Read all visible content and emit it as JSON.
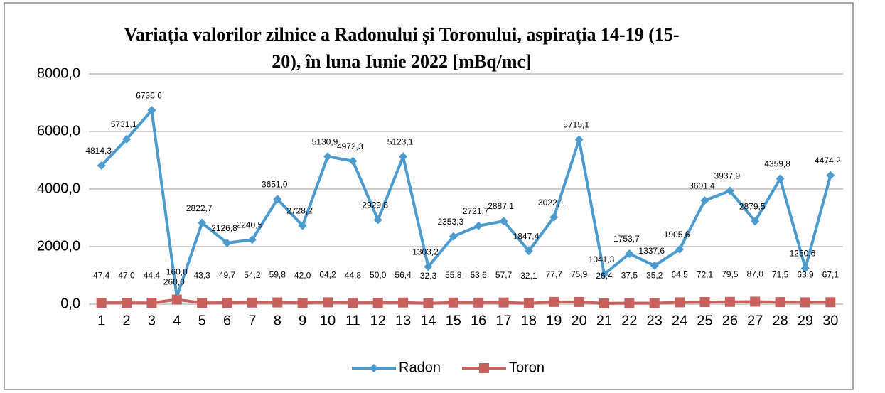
{
  "chart_data": {
    "type": "line",
    "title": "Variația valorilor zilnice a Radonului și Toronului, aspirația 14-19 (15-20),  în luna Iunie 2022 [mBq/mc]",
    "categories": [
      "1",
      "2",
      "3",
      "4",
      "5",
      "6",
      "7",
      "8",
      "9",
      "10",
      "11",
      "12",
      "13",
      "14",
      "15",
      "16",
      "17",
      "18",
      "19",
      "20",
      "21",
      "22",
      "23",
      "24",
      "25",
      "26",
      "27",
      "28",
      "29",
      "30"
    ],
    "series": [
      {
        "name": "Radon",
        "color": "#4b9bcf",
        "marker": "diamond",
        "values": [
          4814.3,
          5731.1,
          6736.6,
          260.0,
          2822.7,
          2126.8,
          2240.5,
          3651.0,
          2728.2,
          5130.9,
          4972.3,
          2929.8,
          5123.1,
          1303.2,
          2353.3,
          2721.7,
          2887.1,
          1847.4,
          3022.1,
          5715.1,
          1041.3,
          1753.7,
          1337.6,
          1905.6,
          3601.4,
          3937.9,
          2879.5,
          4359.8,
          1250.6,
          4474.2
        ],
        "value_labels": [
          "4814,3",
          "5731,1",
          "6736,6",
          "260,0",
          "2822,7",
          "2126,8",
          "2240,5",
          "3651,0",
          "2728,2",
          "5130,9",
          "4972,3",
          "2929,8",
          "5123,1",
          "1303,2",
          "2353,3",
          "2721,7",
          "2887,1",
          "1847,4",
          "3022,1",
          "5715,1",
          "1041,3",
          "1753,7",
          "1337,6",
          "1905,6",
          "3601,4",
          "3937,9",
          "2879,5",
          "4359,8",
          "1250,6",
          "4474,2"
        ]
      },
      {
        "name": "Toron",
        "color": "#c8605e",
        "marker": "square",
        "values": [
          47.4,
          47.0,
          44.4,
          160.0,
          43.3,
          49.7,
          54.2,
          59.8,
          42.0,
          64.2,
          44.8,
          50.0,
          56.4,
          32.3,
          55.8,
          53.6,
          57.7,
          32.1,
          77.7,
          75.9,
          26.4,
          37.5,
          35.2,
          64.5,
          72.1,
          79.5,
          87.0,
          71.5,
          63.9,
          67.1
        ],
        "value_labels": [
          "47,4",
          "47,0",
          "44,4",
          "160,0",
          "43,3",
          "49,7",
          "54,2",
          "59,8",
          "42,0",
          "64,2",
          "44,8",
          "50,0",
          "56,4",
          "32,3",
          "55,8",
          "53,6",
          "57,7",
          "32,1",
          "77,7",
          "75,9",
          "26,4",
          "37,5",
          "35,2",
          "64,5",
          "72,1",
          "79,5",
          "87,0",
          "71,5",
          "63,9",
          "67,1"
        ]
      }
    ],
    "ylim": [
      0,
      8000
    ],
    "yticks": [
      {
        "value": 0,
        "label": "0,0"
      },
      {
        "value": 2000,
        "label": "2000,0"
      },
      {
        "value": 4000,
        "label": "4000,0"
      },
      {
        "value": 6000,
        "label": "6000,0"
      },
      {
        "value": 8000,
        "label": "8000,0"
      }
    ],
    "grid": true,
    "legend": "bottom"
  }
}
